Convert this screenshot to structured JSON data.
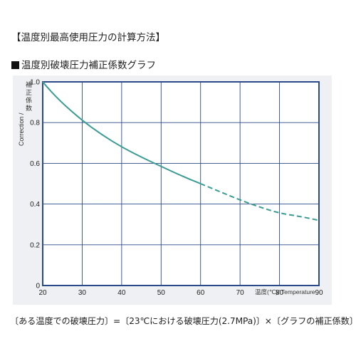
{
  "heading": "【温度別最高使用圧力の計算方法】",
  "subheading": "温度別破壊圧力補正係数グラフ",
  "footer": "〔ある温度での破壊圧力〕=〔23℃における破壊圧力(2.7MPa)〕×〔グラフの補正係数〕",
  "colors": {
    "curve": "#3a9c92",
    "frame": "#2b4a8a",
    "grid": "#2b4a8a",
    "panel": "#eef0f3",
    "plot_bg": "#ffffff"
  },
  "chart_data": {
    "type": "line",
    "title": "",
    "ylabel_jp": "補正係数",
    "ylabel_en": "Correction",
    "ylabel_sep": "/",
    "xlabel": "温度(℃)/ Temperature",
    "xlim": [
      20,
      90
    ],
    "ylim": [
      0,
      1.0
    ],
    "xticks": [
      "20",
      "30",
      "40",
      "50",
      "60",
      "70",
      "80",
      "90"
    ],
    "yticks": [
      "0",
      "0.2",
      "0.4",
      "0.6",
      "0.8",
      "1.0"
    ],
    "grid": true,
    "series": [
      {
        "style": "solid",
        "x": [
          20,
          22,
          25,
          30,
          35,
          40,
          45,
          50,
          55,
          60
        ],
        "y": [
          1.0,
          0.955,
          0.895,
          0.81,
          0.74,
          0.68,
          0.63,
          0.585,
          0.54,
          0.5
        ]
      },
      {
        "style": "dashed",
        "x": [
          60,
          65,
          70,
          75,
          80,
          85,
          90
        ],
        "y": [
          0.5,
          0.46,
          0.42,
          0.385,
          0.355,
          0.34,
          0.32
        ]
      }
    ]
  }
}
